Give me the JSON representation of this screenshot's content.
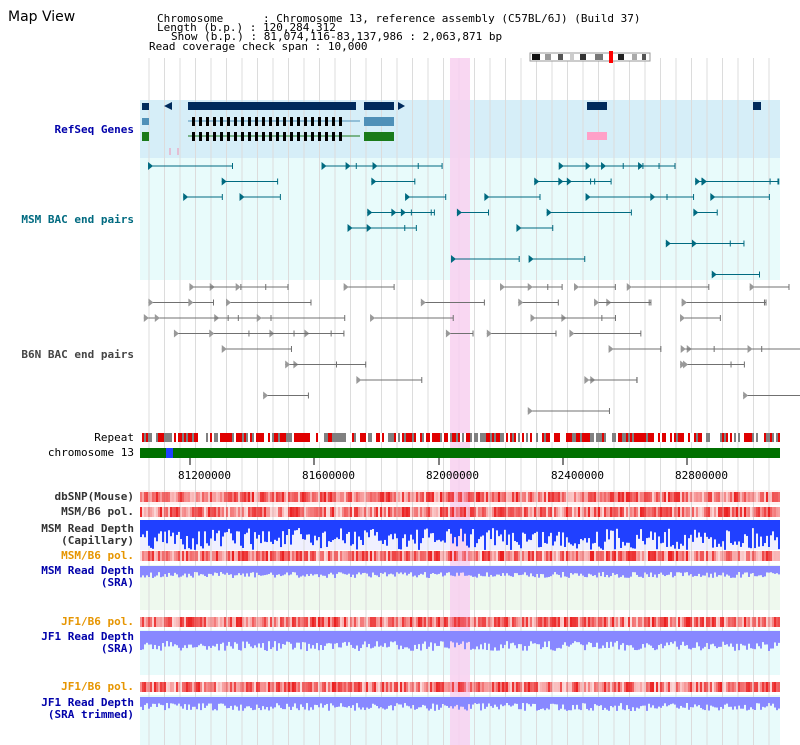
{
  "page_title": "Map View",
  "info": {
    "chromosome_key": "Chromosome      ",
    "chromosome_val": ": Chromosome 13, reference assembly (C57BL/6J) (Build 37)",
    "length_key": "Length (b.p.)",
    "length_val": ": 120,284,312",
    "show_key": "Show (b.p.)",
    "show_val": ": 81,074,116-83,137,986 : 2,063,871 bp",
    "span_key": "Read coverage check span",
    "span_val": ": 10,000"
  },
  "tracks": {
    "refseq": "RefSeq Genes",
    "msm_bac": "MSM BAC end pairs",
    "b6n_bac": "B6N BAC end pairs",
    "repeat": "Repeat",
    "chromosome": "chromosome 13",
    "dbsnp": "dbSNP(Mouse)",
    "msm_b6_pol_1": "MSM/B6 pol.",
    "msm_read_depth_cap_1": "MSM Read Depth",
    "msm_read_depth_cap_2": "(Capillary)",
    "msm_b6_pol_2": "MSM/B6 pol.",
    "msm_read_depth_sra_1": "MSM Read Depth",
    "msm_read_depth_sra_2": "(SRA)",
    "jf1_b6_pol_1": "JF1/B6 pol.",
    "jf1_read_depth_sra_1": "JF1 Read Depth",
    "jf1_read_depth_sra_2": "(SRA)",
    "jf1_b6_pol_2": "JF1/B6 pol.",
    "jf1_read_depth_trim_1": "JF1 Read Depth",
    "jf1_read_depth_trim_2": "(SRA trimmed)"
  },
  "axis_ticks": [
    "81200000",
    "81600000",
    "82000000",
    "82400000",
    "82800000"
  ],
  "colors": {
    "refseq_bg": "#d6eef8",
    "bac_bg": "#e8fbfb",
    "highlight": "#f8d0f0",
    "navy": "#002a5c",
    "steel": "#4f90b8",
    "green": "#1a7a1a",
    "chrom_green": "#007000",
    "teal": "#006a80",
    "grey": "#707070",
    "red": "#e00000",
    "depth_blue": "#2040ff",
    "depth_light": "#8888ff"
  }
}
